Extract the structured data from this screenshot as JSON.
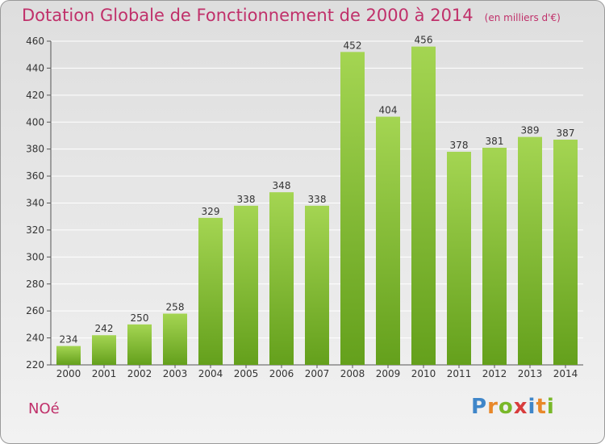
{
  "header": {
    "title": "Dotation Globale de Fonctionnement de 2000 à 2014",
    "unit_note": "(en milliers d'€)"
  },
  "commune": "NOé",
  "brand": {
    "letters": [
      "P",
      "r",
      "o",
      "x",
      "i",
      "t",
      "i"
    ],
    "colors": [
      "#3f86c9",
      "#e8882a",
      "#79b829",
      "#d83c3c",
      "#3f86c9",
      "#e8882a",
      "#79b829"
    ]
  },
  "colors": {
    "bar_top": "#a4d552",
    "bar_bottom": "#64a01c",
    "title": "#c0306a",
    "axis": "#555555",
    "grid": "#ffffff"
  },
  "chart_data": {
    "type": "bar",
    "title": "Dotation Globale de Fonctionnement de 2000 à 2014",
    "subtitle": "(en milliers d'€)",
    "xlabel": "",
    "ylabel": "",
    "categories": [
      "2000",
      "2001",
      "2002",
      "2003",
      "2004",
      "2005",
      "2006",
      "2007",
      "2008",
      "2009",
      "2010",
      "2011",
      "2012",
      "2013",
      "2014"
    ],
    "values": [
      234,
      242,
      250,
      258,
      329,
      338,
      348,
      338,
      452,
      404,
      456,
      378,
      381,
      389,
      387
    ],
    "ylim": [
      220,
      460
    ],
    "yticks": [
      220,
      240,
      260,
      280,
      300,
      320,
      340,
      360,
      380,
      400,
      420,
      440,
      460
    ],
    "grid": true,
    "legend": "none"
  }
}
